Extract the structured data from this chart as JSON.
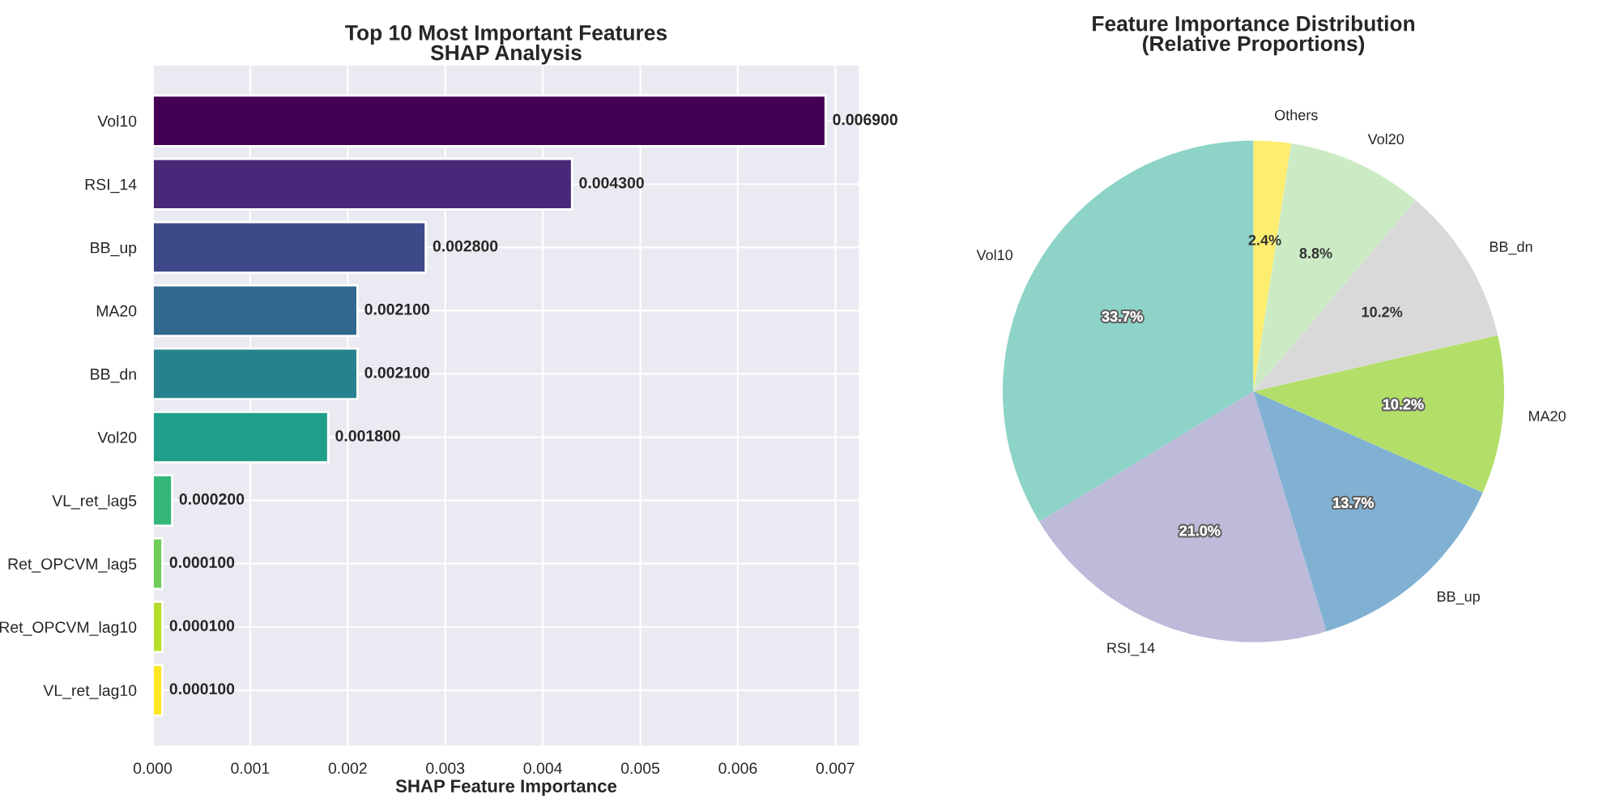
{
  "chart_data": [
    {
      "type": "bar",
      "orientation": "horizontal",
      "title": "Top 10 Most Important Features\nSHAP Analysis",
      "xlabel": "SHAP Feature Importance",
      "categories": [
        "Vol10",
        "RSI_14",
        "BB_up",
        "MA20",
        "BB_dn",
        "Vol20",
        "VL_ret_lag5",
        "Ret_OPCVM_lag5",
        "Ret_OPCVM_lag10",
        "VL_ret_lag10"
      ],
      "values": [
        0.0069,
        0.0043,
        0.0028,
        0.0021,
        0.0021,
        0.0018,
        0.0002,
        0.0001,
        0.0001,
        0.0001
      ],
      "value_labels": [
        "0.006900",
        "0.004300",
        "0.002800",
        "0.002100",
        "0.002100",
        "0.001800",
        "0.000200",
        "0.000100",
        "0.000100",
        "0.000100"
      ],
      "colors": [
        "#440154",
        "#482878",
        "#3e4989",
        "#31688e",
        "#26828e",
        "#1f9e89",
        "#35b779",
        "#6ece58",
        "#b5de2b",
        "#fde725"
      ],
      "xlim": [
        0,
        0.00725
      ],
      "xticks": [
        {
          "value": 0,
          "label": "0.000"
        },
        {
          "value": 0.001,
          "label": "0.001"
        },
        {
          "value": 0.002,
          "label": "0.002"
        },
        {
          "value": 0.003,
          "label": "0.003"
        },
        {
          "value": 0.004,
          "label": "0.004"
        },
        {
          "value": 0.005,
          "label": "0.005"
        },
        {
          "value": 0.006,
          "label": "0.006"
        },
        {
          "value": 0.007,
          "label": "0.007"
        }
      ],
      "grid": true
    },
    {
      "type": "pie",
      "title": "Feature Importance Distribution\n(Relative Proportions)",
      "categories": [
        "Vol10",
        "RSI_14",
        "BB_up",
        "MA20",
        "BB_dn",
        "Vol20",
        "Others"
      ],
      "values": [
        33.7,
        21.0,
        13.7,
        10.2,
        10.2,
        8.8,
        2.4
      ],
      "value_labels": [
        "33.7%",
        "21.0%",
        "13.7%",
        "10.2%",
        "10.2%",
        "8.8%",
        "2.4%"
      ],
      "colors": [
        "#8dd3c7",
        "#bebada",
        "#80b1d3",
        "#b3de69",
        "#d9d9d9",
        "#ccebc5",
        "#ffed6f"
      ]
    }
  ]
}
